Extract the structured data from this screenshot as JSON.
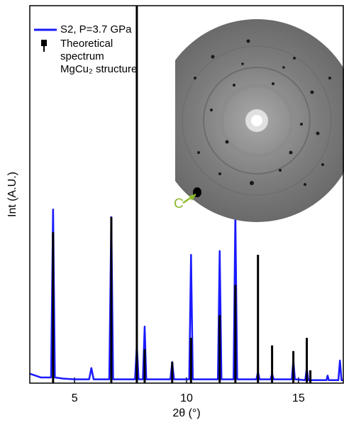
{
  "chart_data": {
    "type": "line",
    "xlabel": "2θ (°)",
    "ylabel": "Int (A.U.)",
    "xlim": [
      3,
      17
    ],
    "ylim": [
      0,
      100
    ],
    "xticks": [
      5,
      10,
      15
    ],
    "legend": "upper left",
    "annotations": [
      "C"
    ],
    "series": [
      {
        "name": "S2, P=3.7 GPa",
        "color": "#1a1aff",
        "marker": "line",
        "x": [
          3.0,
          3.5,
          3.95,
          4.04,
          4.12,
          4.5,
          5.0,
          5.65,
          5.75,
          5.85,
          6.55,
          6.64,
          6.72,
          7.7,
          7.78,
          7.86,
          8.05,
          8.13,
          8.2,
          9.28,
          9.36,
          9.44,
          10.12,
          10.2,
          10.28,
          11.4,
          11.48,
          11.56,
          12.1,
          12.18,
          12.26,
          13.12,
          13.19,
          13.26,
          13.75,
          13.82,
          13.89,
          14.7,
          14.77,
          14.84,
          15.3,
          15.37,
          15.44,
          16.25,
          16.3,
          16.35,
          16.78,
          16.85,
          16.92,
          17.0
        ],
        "values": [
          2.5,
          1.5,
          1.5,
          46,
          1.5,
          1.2,
          1.0,
          1.0,
          4,
          1.0,
          1.0,
          44,
          1.0,
          1.0,
          10,
          1.0,
          1.0,
          15,
          1.0,
          1.0,
          5.6,
          1.0,
          1.0,
          34,
          1.0,
          1.0,
          35,
          1.0,
          1.0,
          45,
          1.0,
          1.0,
          3,
          1.0,
          1.0,
          2.5,
          1.0,
          1.0,
          6,
          1.0,
          0.8,
          4,
          0.8,
          0.8,
          2,
          0.8,
          0.8,
          6,
          0.8,
          0.8
        ]
      },
      {
        "name": "Theoretical\nspectrum\nMgCu₂ structure",
        "color": "#000000",
        "marker": "stick",
        "x": [
          4.04,
          6.64,
          7.78,
          8.13,
          9.36,
          10.2,
          11.48,
          12.18,
          13.19,
          13.82,
          14.77,
          15.37,
          15.53
        ],
        "values": [
          40,
          44,
          100,
          9,
          5.6,
          12,
          18,
          26,
          34,
          10,
          8.5,
          12,
          3.4
        ]
      }
    ]
  }
}
